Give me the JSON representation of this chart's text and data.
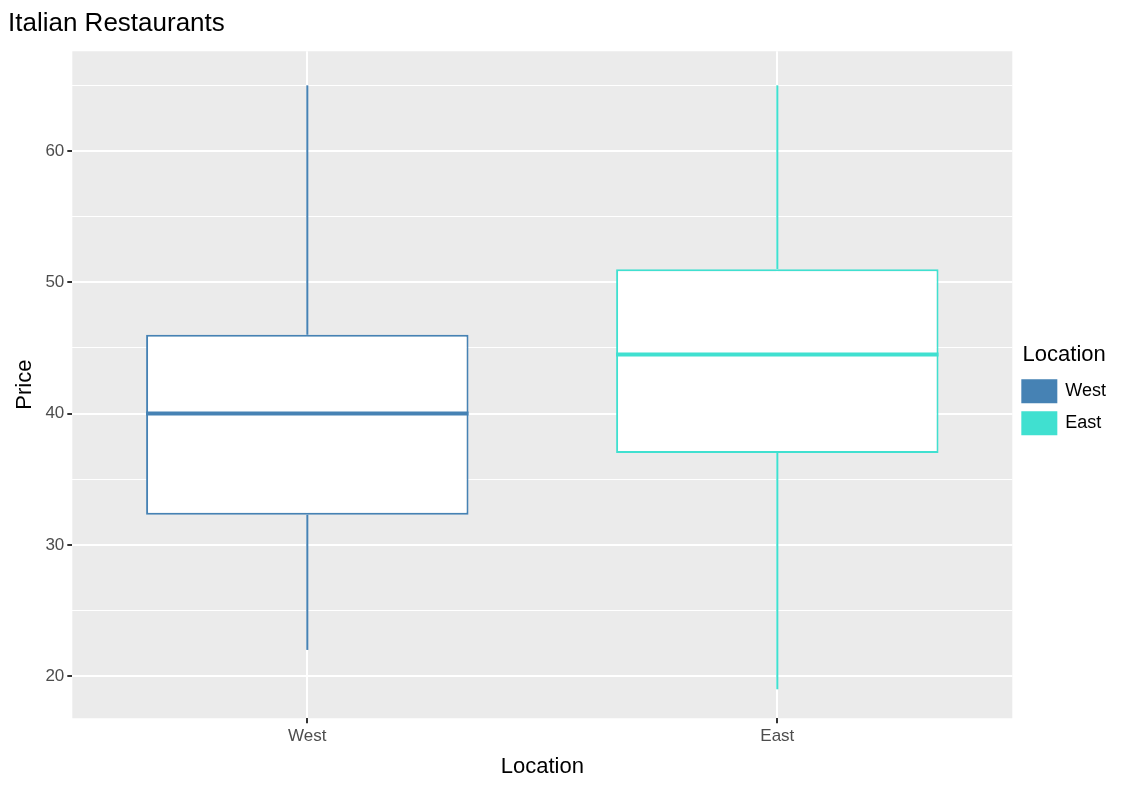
{
  "chart_data": {
    "type": "box",
    "title": "Italian Restaurants",
    "xlabel": "Location",
    "ylabel": "Price",
    "legend_title": "Location",
    "categories": [
      "West",
      "East"
    ],
    "series": [
      {
        "name": "West",
        "color": "#4682b4",
        "boxes": [
          {
            "low": 22,
            "q1": 32.3,
            "median": 40,
            "q3": 46,
            "high": 65
          },
          null
        ]
      },
      {
        "name": "East",
        "color": "#40e0d0",
        "boxes": [
          null,
          {
            "low": 19,
            "q1": 37,
            "median": 44.5,
            "q3": 51,
            "high": 65
          }
        ]
      }
    ],
    "ylim": [
      16.8,
      67.6
    ],
    "yticks": [
      20,
      {
        "value": 25,
        "label": null
      },
      30,
      {
        "value": 35,
        "label": null
      },
      40,
      {
        "value": 45,
        "label": null
      },
      50,
      {
        "value": 55,
        "label": null
      },
      60,
      {
        "value": 65,
        "label": null
      }
    ],
    "grid": true,
    "legend": "right"
  }
}
